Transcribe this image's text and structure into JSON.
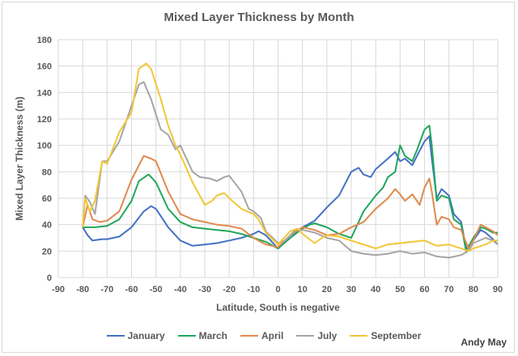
{
  "chart_data": {
    "type": "line",
    "title": "Mixed Layer Thickness by Month",
    "xlabel": "Latitude, South is negative",
    "ylabel": "Mixed Layer Thickness (m)",
    "xlim": [
      -90,
      90
    ],
    "ylim": [
      0,
      180
    ],
    "xticks": [
      -90,
      -80,
      -70,
      -60,
      -50,
      -40,
      -30,
      -20,
      -10,
      0,
      10,
      20,
      30,
      40,
      50,
      60,
      70,
      80,
      90
    ],
    "yticks": [
      0,
      20,
      40,
      60,
      80,
      100,
      120,
      140,
      160,
      180
    ],
    "grid": true,
    "legend_position": "bottom",
    "series": [
      {
        "name": "January",
        "color": "#4472c4",
        "points": [
          [
            -80,
            38
          ],
          [
            -78,
            32
          ],
          [
            -76,
            28
          ],
          [
            -72,
            29
          ],
          [
            -70,
            29
          ],
          [
            -65,
            31
          ],
          [
            -60,
            38
          ],
          [
            -55,
            50
          ],
          [
            -52,
            54
          ],
          [
            -50,
            52
          ],
          [
            -45,
            38
          ],
          [
            -40,
            28
          ],
          [
            -35,
            24
          ],
          [
            -30,
            25
          ],
          [
            -25,
            26
          ],
          [
            -20,
            28
          ],
          [
            -15,
            30
          ],
          [
            -10,
            33
          ],
          [
            -8,
            35
          ],
          [
            -5,
            32
          ],
          [
            0,
            22
          ],
          [
            5,
            30
          ],
          [
            10,
            38
          ],
          [
            15,
            43
          ],
          [
            20,
            53
          ],
          [
            25,
            62
          ],
          [
            30,
            80
          ],
          [
            33,
            83
          ],
          [
            35,
            78
          ],
          [
            38,
            76
          ],
          [
            40,
            82
          ],
          [
            45,
            90
          ],
          [
            48,
            95
          ],
          [
            50,
            88
          ],
          [
            52,
            90
          ],
          [
            55,
            85
          ],
          [
            58,
            96
          ],
          [
            60,
            103
          ],
          [
            62,
            107
          ],
          [
            63,
            90
          ],
          [
            65,
            60
          ],
          [
            67,
            67
          ],
          [
            70,
            62
          ],
          [
            72,
            48
          ],
          [
            75,
            42
          ],
          [
            77,
            22
          ],
          [
            80,
            28
          ],
          [
            83,
            36
          ],
          [
            85,
            34
          ],
          [
            88,
            29
          ],
          [
            90,
            25
          ]
        ]
      },
      {
        "name": "March",
        "color": "#21a65b",
        "points": [
          [
            -80,
            38
          ],
          [
            -75,
            38
          ],
          [
            -70,
            39
          ],
          [
            -65,
            44
          ],
          [
            -60,
            58
          ],
          [
            -57,
            73
          ],
          [
            -53,
            78
          ],
          [
            -50,
            72
          ],
          [
            -45,
            52
          ],
          [
            -40,
            42
          ],
          [
            -35,
            38
          ],
          [
            -30,
            37
          ],
          [
            -25,
            36
          ],
          [
            -20,
            35
          ],
          [
            -15,
            33
          ],
          [
            -10,
            30
          ],
          [
            -5,
            27
          ],
          [
            0,
            22
          ],
          [
            5,
            30
          ],
          [
            10,
            37
          ],
          [
            13,
            40
          ],
          [
            15,
            41
          ],
          [
            20,
            38
          ],
          [
            25,
            33
          ],
          [
            30,
            30
          ],
          [
            35,
            50
          ],
          [
            40,
            62
          ],
          [
            43,
            68
          ],
          [
            45,
            76
          ],
          [
            48,
            80
          ],
          [
            50,
            100
          ],
          [
            52,
            92
          ],
          [
            55,
            88
          ],
          [
            57,
            97
          ],
          [
            60,
            112
          ],
          [
            62,
            115
          ],
          [
            63,
            100
          ],
          [
            65,
            58
          ],
          [
            67,
            62
          ],
          [
            70,
            60
          ],
          [
            72,
            44
          ],
          [
            75,
            40
          ],
          [
            77,
            20
          ],
          [
            80,
            30
          ],
          [
            83,
            38
          ],
          [
            85,
            37
          ],
          [
            88,
            34
          ],
          [
            90,
            34
          ]
        ]
      },
      {
        "name": "April",
        "color": "#e08a4f",
        "points": [
          [
            -80,
            38
          ],
          [
            -78,
            55
          ],
          [
            -76,
            44
          ],
          [
            -73,
            42
          ],
          [
            -70,
            43
          ],
          [
            -65,
            50
          ],
          [
            -60,
            74
          ],
          [
            -55,
            92
          ],
          [
            -52,
            90
          ],
          [
            -50,
            88
          ],
          [
            -45,
            65
          ],
          [
            -40,
            48
          ],
          [
            -35,
            44
          ],
          [
            -30,
            42
          ],
          [
            -25,
            40
          ],
          [
            -20,
            39
          ],
          [
            -15,
            37
          ],
          [
            -10,
            30
          ],
          [
            -5,
            25
          ],
          [
            0,
            23
          ],
          [
            5,
            32
          ],
          [
            10,
            38
          ],
          [
            15,
            36
          ],
          [
            20,
            32
          ],
          [
            25,
            33
          ],
          [
            30,
            38
          ],
          [
            35,
            42
          ],
          [
            40,
            52
          ],
          [
            45,
            60
          ],
          [
            48,
            67
          ],
          [
            50,
            63
          ],
          [
            52,
            58
          ],
          [
            55,
            63
          ],
          [
            58,
            55
          ],
          [
            60,
            68
          ],
          [
            62,
            75
          ],
          [
            63,
            65
          ],
          [
            65,
            40
          ],
          [
            67,
            46
          ],
          [
            70,
            44
          ],
          [
            72,
            38
          ],
          [
            75,
            36
          ],
          [
            78,
            22
          ],
          [
            80,
            28
          ],
          [
            83,
            40
          ],
          [
            85,
            38
          ],
          [
            88,
            35
          ],
          [
            90,
            32
          ]
        ]
      },
      {
        "name": "July",
        "color": "#a5a5a5",
        "points": [
          [
            -80,
            38
          ],
          [
            -79,
            62
          ],
          [
            -77,
            57
          ],
          [
            -75,
            48
          ],
          [
            -72,
            88
          ],
          [
            -70,
            88
          ],
          [
            -65,
            103
          ],
          [
            -60,
            130
          ],
          [
            -57,
            146
          ],
          [
            -55,
            148
          ],
          [
            -52,
            135
          ],
          [
            -48,
            112
          ],
          [
            -45,
            108
          ],
          [
            -42,
            97
          ],
          [
            -40,
            100
          ],
          [
            -35,
            80
          ],
          [
            -32,
            76
          ],
          [
            -28,
            75
          ],
          [
            -25,
            73
          ],
          [
            -22,
            76
          ],
          [
            -20,
            77
          ],
          [
            -15,
            65
          ],
          [
            -12,
            52
          ],
          [
            -10,
            50
          ],
          [
            -7,
            45
          ],
          [
            -5,
            35
          ],
          [
            0,
            26
          ],
          [
            3,
            28
          ],
          [
            7,
            36
          ],
          [
            10,
            36
          ],
          [
            15,
            34
          ],
          [
            20,
            30
          ],
          [
            25,
            28
          ],
          [
            30,
            20
          ],
          [
            35,
            18
          ],
          [
            40,
            17
          ],
          [
            45,
            18
          ],
          [
            50,
            20
          ],
          [
            55,
            18
          ],
          [
            60,
            19
          ],
          [
            65,
            16
          ],
          [
            70,
            15
          ],
          [
            75,
            17
          ],
          [
            78,
            20
          ],
          [
            80,
            26
          ],
          [
            85,
            30
          ],
          [
            88,
            28
          ],
          [
            90,
            25
          ]
        ]
      },
      {
        "name": "September",
        "color": "#f2c637",
        "points": [
          [
            -80,
            38
          ],
          [
            -79,
            60
          ],
          [
            -77,
            50
          ],
          [
            -75,
            58
          ],
          [
            -72,
            88
          ],
          [
            -70,
            86
          ],
          [
            -65,
            110
          ],
          [
            -60,
            125
          ],
          [
            -57,
            158
          ],
          [
            -54,
            162
          ],
          [
            -52,
            158
          ],
          [
            -48,
            135
          ],
          [
            -45,
            115
          ],
          [
            -42,
            100
          ],
          [
            -40,
            93
          ],
          [
            -35,
            72
          ],
          [
            -30,
            55
          ],
          [
            -27,
            58
          ],
          [
            -25,
            62
          ],
          [
            -22,
            64
          ],
          [
            -20,
            60
          ],
          [
            -15,
            52
          ],
          [
            -10,
            48
          ],
          [
            -8,
            44
          ],
          [
            -5,
            34
          ],
          [
            0,
            25
          ],
          [
            5,
            35
          ],
          [
            8,
            37
          ],
          [
            10,
            33
          ],
          [
            15,
            26
          ],
          [
            18,
            30
          ],
          [
            20,
            32
          ],
          [
            25,
            31
          ],
          [
            30,
            28
          ],
          [
            35,
            25
          ],
          [
            40,
            22
          ],
          [
            45,
            25
          ],
          [
            50,
            26
          ],
          [
            55,
            27
          ],
          [
            60,
            28
          ],
          [
            65,
            24
          ],
          [
            70,
            25
          ],
          [
            75,
            22
          ],
          [
            78,
            20
          ],
          [
            80,
            22
          ],
          [
            85,
            25
          ],
          [
            88,
            28
          ],
          [
            90,
            28
          ]
        ]
      }
    ],
    "annotation": "Andy May"
  }
}
